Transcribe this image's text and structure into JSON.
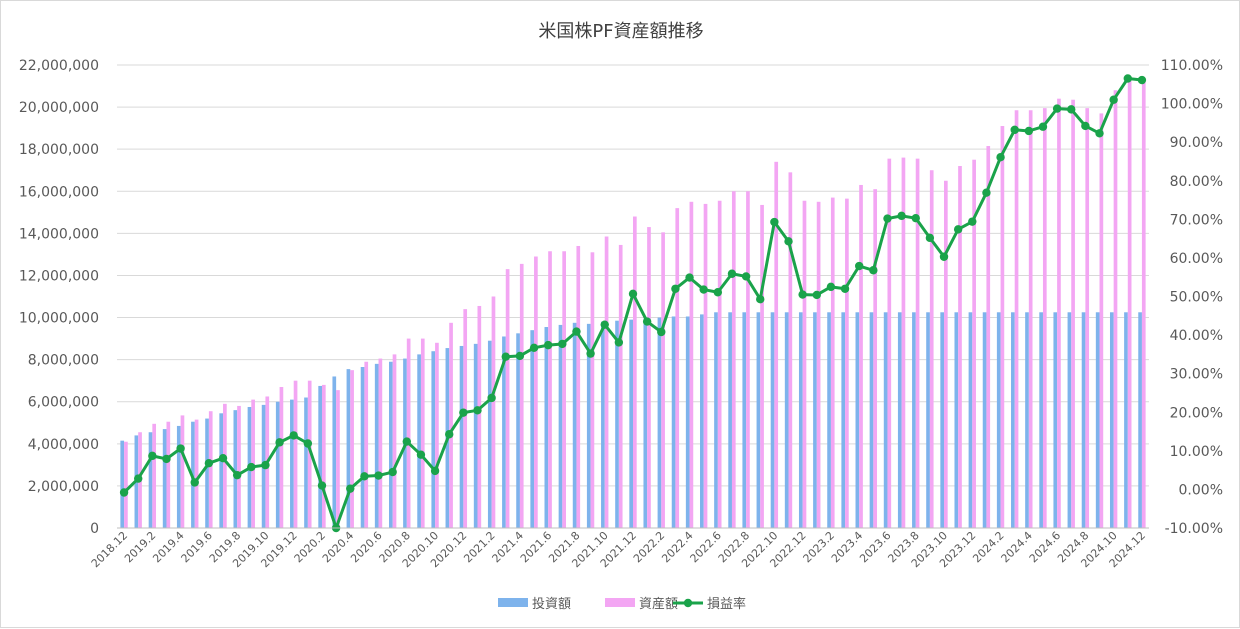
{
  "chart_data": {
    "type": "bar",
    "title": "米国株PF資産額推移",
    "xlabel": "",
    "ylabel": "",
    "y_left": {
      "min": 0,
      "max": 22000000,
      "step": 2000000,
      "tick_labels": [
        "0",
        "2,000,000",
        "4,000,000",
        "6,000,000",
        "8,000,000",
        "10,000,000",
        "12,000,000",
        "14,000,000",
        "16,000,000",
        "18,000,000",
        "20,000,000",
        "22,000,000"
      ]
    },
    "y_right": {
      "min": -10,
      "max": 110,
      "step": 10,
      "tick_labels": [
        "-10.00%",
        "0.00%",
        "10.00%",
        "20.00%",
        "30.00%",
        "40.00%",
        "50.00%",
        "60.00%",
        "70.00%",
        "80.00%",
        "90.00%",
        "100.00%",
        "110.00%"
      ]
    },
    "grid": true,
    "legend_position": "bottom",
    "x_tick_labels": [
      "2018.12",
      "2019.2",
      "2019.4",
      "2019.6",
      "2019.8",
      "2019.10",
      "2019.12",
      "2020.2",
      "2020.4",
      "2020.6",
      "2020.8",
      "2020.10",
      "2020.12",
      "2021.2",
      "2021.4",
      "2021.6",
      "2021.8",
      "2021.10",
      "2021.12",
      "2022.2",
      "2022.4",
      "2022.6",
      "2022.8",
      "2022.10",
      "2022.12",
      "2023.2",
      "2023.4",
      "2023.6",
      "2023.8",
      "2023.10",
      "2023.12",
      "2024.2",
      "2024.4",
      "2024.6",
      "2024.8",
      "2024.10",
      "2024.12"
    ],
    "categories": [
      "2018.12",
      "2019.1",
      "2019.2",
      "2019.3",
      "2019.4",
      "2019.5",
      "2019.6",
      "2019.7",
      "2019.8",
      "2019.9",
      "2019.10",
      "2019.11",
      "2019.12",
      "2020.1",
      "2020.2",
      "2020.3",
      "2020.4",
      "2020.5",
      "2020.6",
      "2020.7",
      "2020.8",
      "2020.9",
      "2020.10",
      "2020.11",
      "2020.12",
      "2021.1",
      "2021.2",
      "2021.3",
      "2021.4",
      "2021.5",
      "2021.6",
      "2021.7",
      "2021.8",
      "2021.9",
      "2021.10",
      "2021.11",
      "2021.12",
      "2022.1",
      "2022.2",
      "2022.3",
      "2022.4",
      "2022.5",
      "2022.6",
      "2022.7",
      "2022.8",
      "2022.9",
      "2022.10",
      "2022.11",
      "2022.12",
      "2023.1",
      "2023.2",
      "2023.3",
      "2023.4",
      "2023.5",
      "2023.6",
      "2023.7",
      "2023.8",
      "2023.9",
      "2023.10",
      "2023.11",
      "2023.12",
      "2024.1",
      "2024.2",
      "2024.3",
      "2024.4",
      "2024.5",
      "2024.6",
      "2024.7",
      "2024.8",
      "2024.9",
      "2024.10",
      "2024.11",
      "2024.12"
    ],
    "series": [
      {
        "name": "投資額",
        "kind": "bar",
        "axis": "left",
        "color": "#7eb3ec",
        "values": [
          4150000,
          4400000,
          4550000,
          4700000,
          4850000,
          5050000,
          5200000,
          5450000,
          5600000,
          5750000,
          5850000,
          6000000,
          6100000,
          6200000,
          6750000,
          7200000,
          7550000,
          7650000,
          7800000,
          7900000,
          8050000,
          8250000,
          8400000,
          8550000,
          8650000,
          8750000,
          8900000,
          9100000,
          9250000,
          9400000,
          9550000,
          9650000,
          9750000,
          9700000,
          9800000,
          9850000,
          9900000,
          9950000,
          10000000,
          10050000,
          10050000,
          10150000,
          10250000,
          10250000,
          10250000,
          10250000,
          10250000,
          10250000,
          10250000,
          10250000,
          10250000,
          10250000,
          10250000,
          10250000,
          10250000,
          10250000,
          10250000,
          10250000,
          10250000,
          10250000,
          10250000,
          10250000,
          10250000,
          10250000,
          10250000,
          10250000,
          10250000,
          10250000,
          10250000,
          10250000,
          10250000,
          10250000,
          10250000
        ]
      },
      {
        "name": "資産額",
        "kind": "bar",
        "axis": "left",
        "color": "#f3a6f3",
        "values": [
          4100000,
          4550000,
          4950000,
          5050000,
          5350000,
          5150000,
          5550000,
          5900000,
          5800000,
          6100000,
          6250000,
          6700000,
          7000000,
          7000000,
          6800000,
          6550000,
          7500000,
          7900000,
          8050000,
          8250000,
          9000000,
          9000000,
          8800000,
          9750000,
          10400000,
          10550000,
          11000000,
          12300000,
          12550000,
          12900000,
          13150000,
          13150000,
          13400000,
          13100000,
          13850000,
          13450000,
          14800000,
          14300000,
          14050000,
          15200000,
          15500000,
          15400000,
          15550000,
          16000000,
          16000000,
          15350000,
          17400000,
          16900000,
          15550000,
          15500000,
          15700000,
          15650000,
          16300000,
          16100000,
          17550000,
          17600000,
          17550000,
          17000000,
          16500000,
          17200000,
          17500000,
          18150000,
          19100000,
          19850000,
          19850000,
          19950000,
          20400000,
          20350000,
          19950000,
          19700000,
          20800000,
          21300000,
          21200000
        ]
      },
      {
        "name": "損益率",
        "kind": "line",
        "axis": "right",
        "color": "#1aa34a",
        "values": [
          -0.8,
          2.8,
          8.7,
          7.9,
          10.6,
          1.8,
          6.8,
          8.1,
          3.7,
          5.8,
          6.3,
          12.2,
          14.0,
          11.9,
          1.0,
          -10.0,
          0.2,
          3.4,
          3.6,
          4.5,
          12.4,
          9.0,
          4.8,
          14.3,
          19.9,
          20.5,
          23.7,
          34.4,
          34.6,
          36.7,
          37.4,
          37.7,
          40.9,
          35.2,
          42.7,
          38.1,
          50.7,
          43.5,
          40.8,
          52.0,
          54.9,
          51.8,
          51.1,
          55.9,
          55.2,
          49.3,
          69.3,
          64.3,
          50.5,
          50.4,
          52.5,
          52.0,
          57.9,
          56.8,
          70.2,
          70.9,
          70.3,
          65.2,
          60.3,
          67.4,
          69.4,
          76.9,
          86.1,
          93.2,
          92.9,
          94.0,
          98.7,
          98.5,
          94.2,
          92.3,
          101.0,
          106.5,
          106.1
        ]
      }
    ]
  }
}
